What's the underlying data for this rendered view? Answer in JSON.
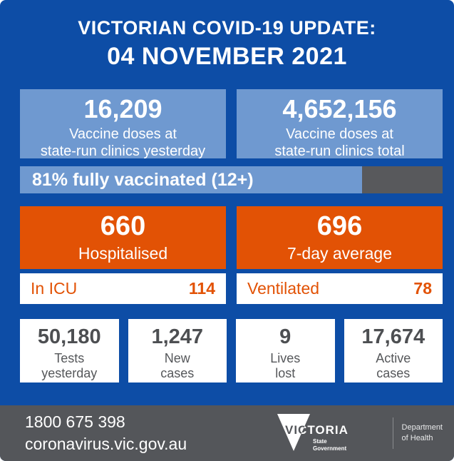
{
  "colors": {
    "background_blue": "#0d4da6",
    "light_blue": "#6f99d0",
    "orange": "#e25205",
    "progress_remainder_gray": "#58595c",
    "footer_gray": "#54565a",
    "stat_text_gray": "#4d4f52",
    "white": "#ffffff"
  },
  "header": {
    "line1": "VICTORIAN COVID-19 UPDATE:",
    "line2": "04 NOVEMBER 2021"
  },
  "vaccine_boxes": [
    {
      "value": "16,209",
      "label": "Vaccine doses at\nstate-run clinics yesterday"
    },
    {
      "value": "4,652,156",
      "label": "Vaccine doses at\nstate-run clinics total"
    }
  ],
  "vaccination_progress": {
    "text": "81% fully vaccinated (12+)",
    "percent": 81
  },
  "hospital_boxes": [
    {
      "value": "660",
      "label": "Hospitalised"
    },
    {
      "value": "696",
      "label": "7-day average"
    }
  ],
  "icu_bars": [
    {
      "label": "In ICU",
      "value": "114"
    },
    {
      "label": "Ventilated",
      "value": "78"
    }
  ],
  "stat_boxes": [
    {
      "value": "50,180",
      "label": "Tests\nyesterday"
    },
    {
      "value": "1,247",
      "label": "New\ncases"
    },
    {
      "value": "9",
      "label": "Lives\nlost"
    },
    {
      "value": "17,674",
      "label": "Active\ncases"
    }
  ],
  "footer": {
    "phone": "1800 675 398",
    "website": "coronavirus.vic.gov.au",
    "logo": {
      "victoria": "VICTORIA",
      "state_line1": "State",
      "state_line2": "Government",
      "department": "Department\nof Health"
    }
  }
}
